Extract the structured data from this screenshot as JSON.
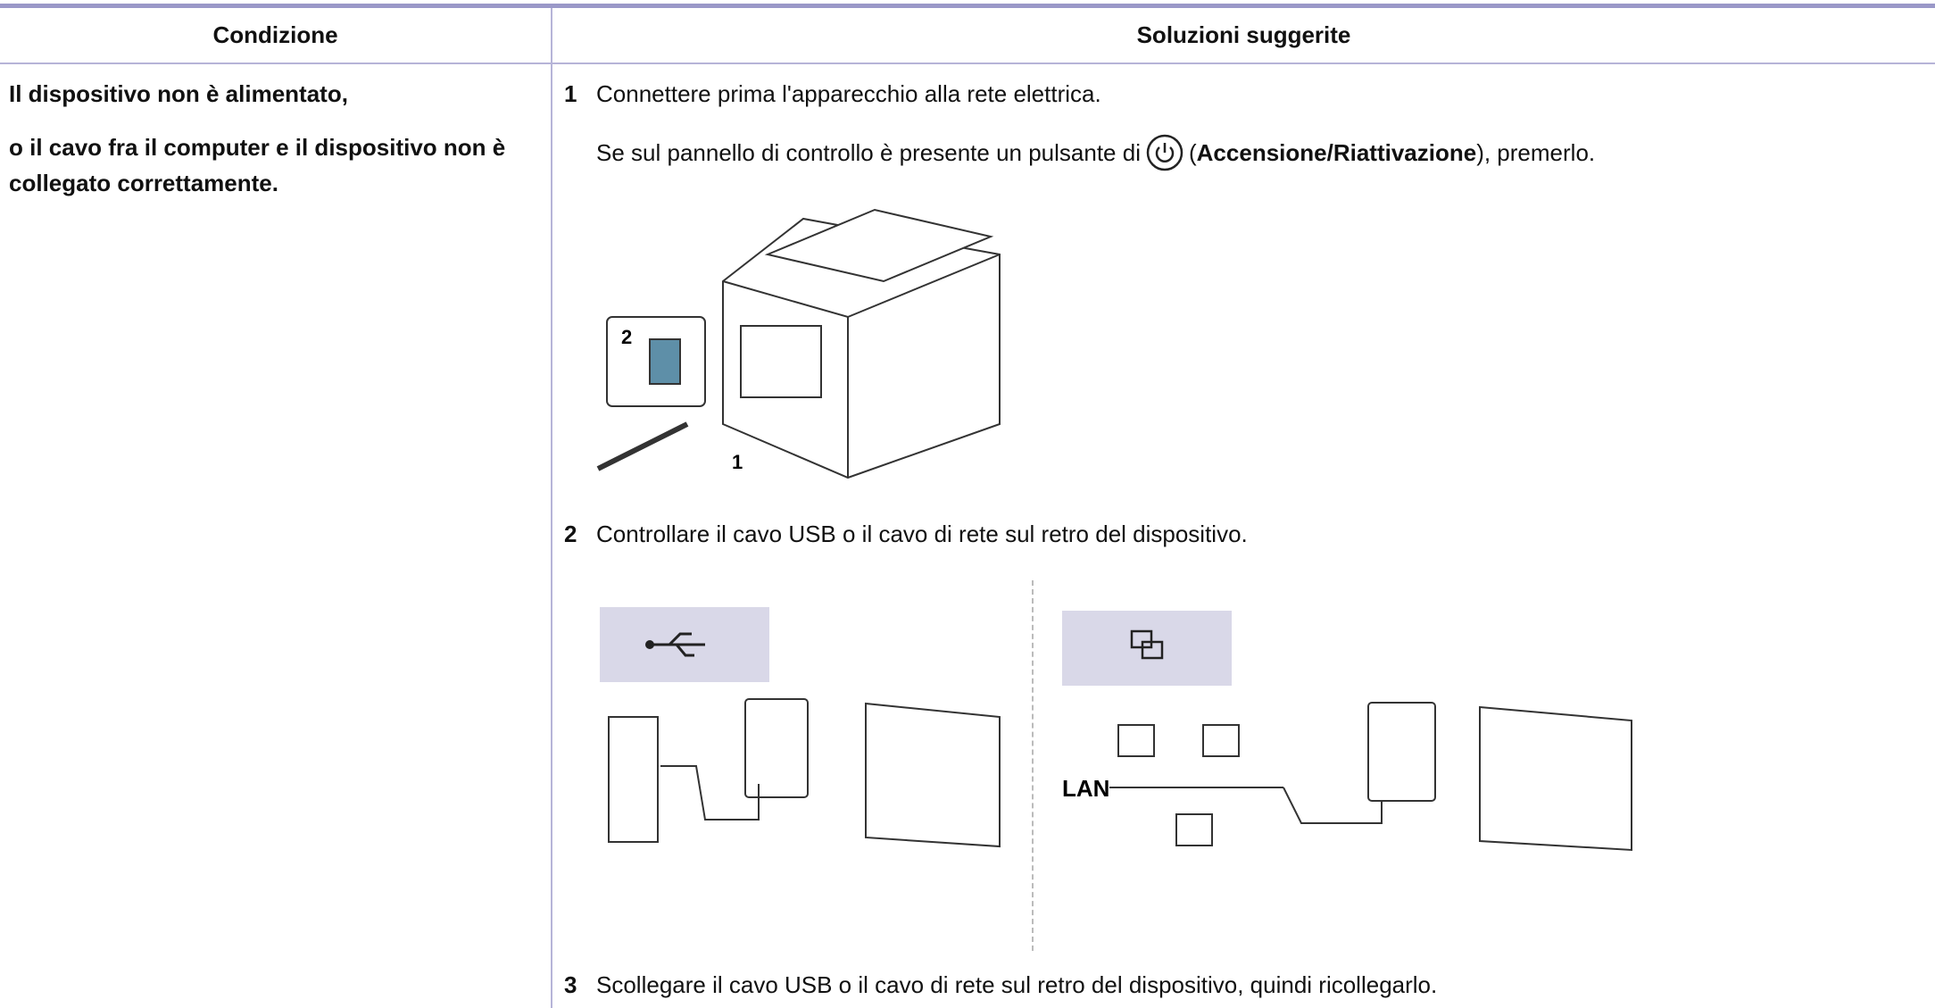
{
  "table": {
    "headers": [
      "Condizione",
      "Soluzioni suggerite"
    ],
    "condition": [
      "Il dispositivo non è alimentato,",
      "o il cavo fra il computer e il dispositivo non è collegato correttamente."
    ],
    "steps": [
      {
        "number": "1",
        "text": "Connettere prima l'apparecchio alla rete elettrica."
      },
      {
        "number": "2",
        "text": "Controllare il cavo USB o il cavo di rete sul retro del dispositivo."
      },
      {
        "number": "3",
        "text": "Scollegare il cavo USB o il cavo di rete sul retro del dispositivo, quindi ricollegarlo."
      }
    ],
    "note": {
      "before": "Se sul pannello di controllo è presente un pulsante di",
      "open": "(",
      "bold": "Accensione/Riattivazione",
      "after": "), premerlo."
    },
    "figures": {
      "printer_labels": [
        "2",
        "1"
      ],
      "network_label": "LAN"
    }
  }
}
